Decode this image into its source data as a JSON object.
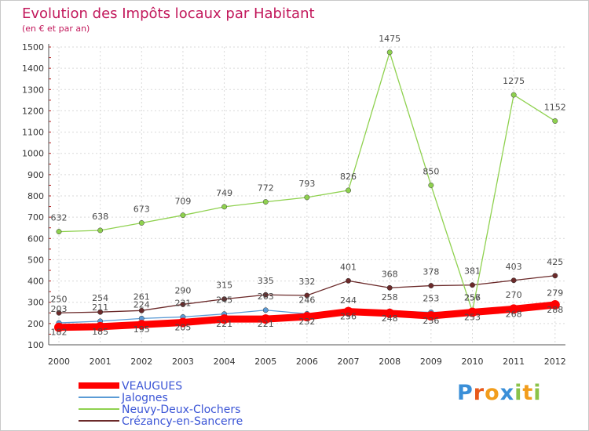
{
  "chart_data": {
    "type": "line",
    "title": "Evolution des Impôts locaux par Habitant",
    "subtitle": "(en € et par an)",
    "x": [
      "2000",
      "2001",
      "2002",
      "2003",
      "2004",
      "2005",
      "2006",
      "2007",
      "2008",
      "2009",
      "2010",
      "2011",
      "2012"
    ],
    "ylim": [
      100,
      1500
    ],
    "yticks": [
      100,
      200,
      300,
      400,
      500,
      600,
      700,
      800,
      900,
      1000,
      1100,
      1200,
      1300,
      1400,
      1500
    ],
    "grid": true,
    "legend_position": "bottom-left",
    "series": [
      {
        "name": "VEAUGUES",
        "color": "#ff0000",
        "values": [
          182,
          185,
          195,
          205,
          221,
          221,
          232,
          256,
          248,
          236,
          253,
          268,
          288
        ],
        "emphasis": true
      },
      {
        "name": "Jalognes",
        "color": "#5b9bd5",
        "values": [
          203,
          211,
          224,
          231,
          245,
          263,
          246,
          244,
          258,
          253,
          256,
          270,
          279
        ]
      },
      {
        "name": "Neuvy-Deux-Clochers",
        "color": "#8fd14f",
        "values": [
          632,
          638,
          673,
          709,
          749,
          772,
          793,
          826,
          1475,
          850,
          257,
          1275,
          1152
        ]
      },
      {
        "name": "Crézancy-en-Sancerre",
        "color": "#6b2a2a",
        "values": [
          250,
          254,
          261,
          290,
          315,
          335,
          332,
          401,
          368,
          378,
          381,
          403,
          425
        ]
      }
    ]
  },
  "logo": {
    "text": "Proxiti",
    "letters": [
      "P",
      "r",
      "o",
      "x",
      "i",
      "t",
      "i"
    ],
    "colors": [
      "#3a8fd8",
      "#e85a1c",
      "#f29d1c",
      "#3a8fd8",
      "#8bc34a",
      "#f29d1c",
      "#8bc34a"
    ]
  }
}
